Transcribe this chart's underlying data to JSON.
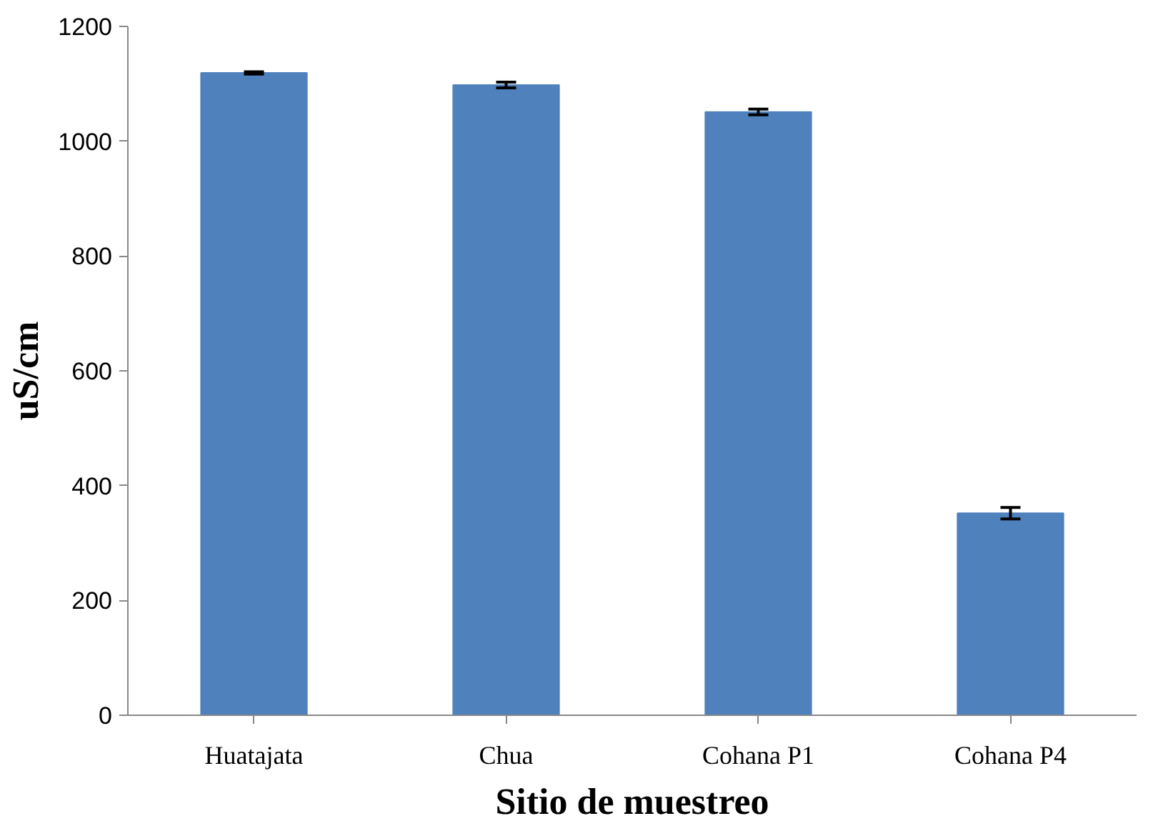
{
  "chart_data": {
    "type": "bar",
    "xlabel": "Sitio de muestreo",
    "ylabel": "uS/cm",
    "categories": [
      "Huatajata",
      "Chua",
      "Cohana P1",
      "Cohana P4"
    ],
    "values": [
      1119,
      1098,
      1051,
      352
    ],
    "errors": [
      2,
      5,
      5,
      10
    ],
    "color": "#4f81bd",
    "ylim": [
      0,
      1200
    ],
    "yticks": [
      0,
      200,
      400,
      600,
      800,
      1000,
      1200
    ],
    "grid": false
  }
}
